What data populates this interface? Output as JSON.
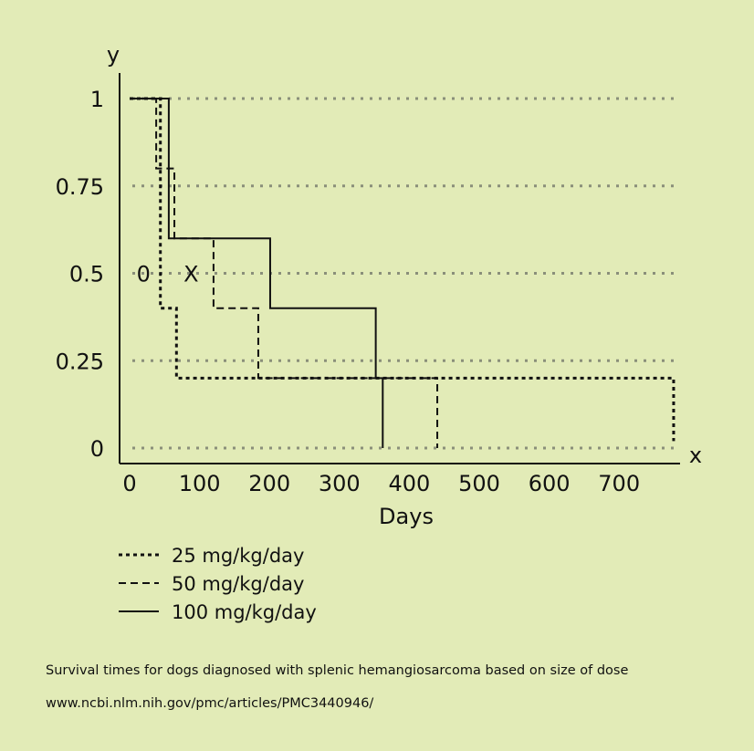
{
  "chart_data": {
    "type": "line",
    "step": true,
    "xlabel": "Days",
    "x_axis_letter": "x",
    "y_axis_letter": "y",
    "xlim": [
      0,
      780
    ],
    "ylim": [
      0,
      1
    ],
    "x_ticks": [
      "0",
      "100",
      "200",
      "300",
      "400",
      "500",
      "600",
      "700"
    ],
    "x_tick_values": [
      0,
      100,
      200,
      300,
      400,
      500,
      600,
      700
    ],
    "y_ticks": [
      "0",
      "0.25",
      "0.5",
      "0.75",
      "1"
    ],
    "y_tick_values": [
      0,
      0.25,
      0.5,
      0.75,
      1
    ],
    "grid": "horizontal dotted",
    "legend_position": "bottom-left",
    "annotations": [
      {
        "text": "0",
        "x": 20,
        "y": 0.5
      },
      {
        "text": "X",
        "x": 88,
        "y": 0.5
      }
    ],
    "series": [
      {
        "name": "25 mg/kg/day",
        "style": "dotted",
        "x": [
          0,
          44,
          44,
          67,
          67,
          778,
          778
        ],
        "y": [
          1,
          1,
          0.4,
          0.4,
          0.2,
          0.2,
          0.02
        ]
      },
      {
        "name": "50 mg/kg/day",
        "style": "dashed",
        "x": [
          0,
          38,
          38,
          64,
          64,
          120,
          120,
          184,
          184,
          440,
          440
        ],
        "y": [
          1,
          1,
          0.8,
          0.8,
          0.6,
          0.6,
          0.4,
          0.4,
          0.2,
          0.2,
          0
        ]
      },
      {
        "name": "100 mg/kg/day",
        "style": "solid",
        "x": [
          3,
          56,
          56,
          201,
          201,
          352,
          352,
          362,
          362
        ],
        "y": [
          1,
          1,
          0.6,
          0.6,
          0.4,
          0.4,
          0.2,
          0.2,
          0
        ]
      }
    ]
  },
  "caption": "Survival times for dogs diagnosed with splenic hemangiosarcoma based on size of dose",
  "source": "www.ncbi.nlm.nih.gov/pmc/articles/PMC3440946/",
  "colors": {
    "background": "#e2ebb7",
    "ink": "#111111",
    "grid": "#8a8f7a"
  }
}
